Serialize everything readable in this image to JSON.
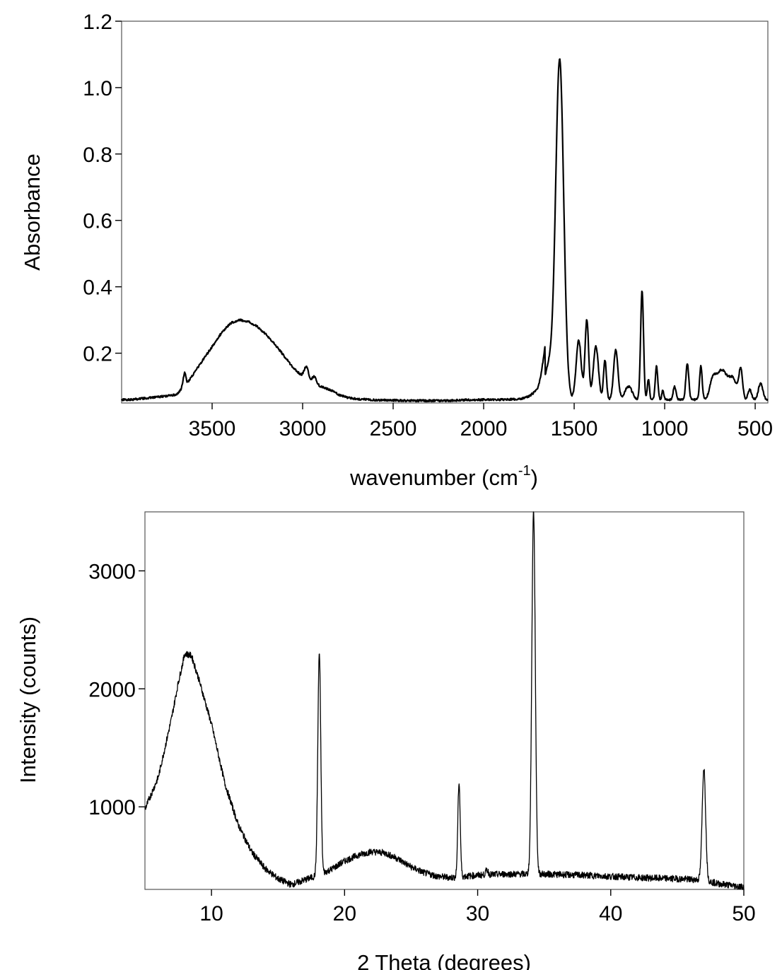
{
  "chart_data": [
    {
      "type": "line",
      "title": "",
      "xlabel": "wavenumber (cm",
      "xlabel_sup": "-1",
      "xlabel_end": ")",
      "ylabel": "Absorbance",
      "xlim": [
        4000,
        430
      ],
      "ylim": [
        0.05,
        1.2
      ],
      "x_reversed": true,
      "x_ticks": [
        3500,
        3000,
        2500,
        2000,
        1500,
        1000,
        500
      ],
      "x_tick_labels": [
        "3500",
        "3000",
        "2500",
        "2000",
        "1500",
        "1000",
        "500"
      ],
      "y_ticks": [
        0.2,
        0.4,
        0.6,
        0.8,
        1.0,
        1.2
      ],
      "y_tick_labels": [
        "0.2",
        "0.4",
        "0.6",
        "0.8",
        "1.0",
        "1.2"
      ],
      "grid": false,
      "series": [
        {
          "baseline": [
            [
              3950,
              0.06
            ],
            [
              3800,
              0.068
            ],
            [
              3700,
              0.075
            ],
            [
              3650,
              0.1
            ],
            [
              3600,
              0.14
            ],
            [
              3550,
              0.18
            ],
            [
              3500,
              0.22
            ],
            [
              3450,
              0.26
            ],
            [
              3400,
              0.29
            ],
            [
              3350,
              0.3
            ],
            [
              3300,
              0.295
            ],
            [
              3250,
              0.28
            ],
            [
              3200,
              0.255
            ],
            [
              3150,
              0.225
            ],
            [
              3100,
              0.19
            ],
            [
              3050,
              0.155
            ],
            [
              3000,
              0.13
            ],
            [
              2950,
              0.115
            ],
            [
              2900,
              0.1
            ],
            [
              2850,
              0.09
            ],
            [
              2800,
              0.075
            ],
            [
              2750,
              0.066
            ],
            [
              2700,
              0.062
            ],
            [
              2600,
              0.059
            ],
            [
              2500,
              0.058
            ],
            [
              2400,
              0.057
            ],
            [
              2200,
              0.057
            ],
            [
              2100,
              0.059
            ],
            [
              2000,
              0.06
            ],
            [
              1900,
              0.06
            ],
            [
              1800,
              0.062
            ],
            [
              1750,
              0.07
            ],
            [
              1700,
              0.09
            ],
            [
              1680,
              0.12
            ],
            [
              1660,
              0.15
            ]
          ],
          "peaks": [
            [
              3655,
              0.025,
              8
            ],
            [
              3650,
              0.02,
              6
            ],
            [
              2980,
              0.035,
              12
            ],
            [
              2935,
              0.02,
              10
            ],
            [
              1580,
              1.02,
              22
            ],
            [
              1640,
              0.1,
              25
            ],
            [
              1475,
              0.18,
              14
            ],
            [
              1430,
              0.24,
              10
            ],
            [
              1380,
              0.16,
              14
            ],
            [
              1330,
              0.12,
              8
            ],
            [
              1270,
              0.15,
              12
            ],
            [
              1200,
              0.04,
              20
            ],
            [
              1125,
              0.33,
              8
            ],
            [
              1090,
              0.06,
              6
            ],
            [
              1045,
              0.1,
              7
            ],
            [
              1010,
              0.03,
              5
            ],
            [
              945,
              0.04,
              8
            ],
            [
              875,
              0.11,
              8
            ],
            [
              800,
              0.1,
              7
            ],
            [
              735,
              0.04,
              15
            ],
            [
              685,
              0.09,
              35
            ],
            [
              620,
              0.05,
              20
            ],
            [
              580,
              0.09,
              10
            ],
            [
              530,
              0.03,
              10
            ],
            [
              470,
              0.05,
              12
            ]
          ],
          "tail_baseline": 0.06,
          "noise_amplitude": 0.003
        }
      ]
    },
    {
      "type": "line",
      "title": "",
      "xlabel": "2 Theta (degrees)",
      "ylabel": "Intensity (counts)",
      "xlim": [
        5,
        50
      ],
      "ylim": [
        300,
        3500
      ],
      "x_ticks": [
        10,
        20,
        30,
        40,
        50
      ],
      "x_tick_labels": [
        "10",
        "20",
        "30",
        "40",
        "50"
      ],
      "y_ticks": [
        1000,
        2000,
        3000
      ],
      "y_tick_labels": [
        "1000",
        "2000",
        "3000"
      ],
      "grid": false,
      "series": [
        {
          "baseline": [
            [
              5,
              980
            ],
            [
              6,
              1250
            ],
            [
              7,
              1750
            ],
            [
              7.5,
              2050
            ],
            [
              8,
              2300
            ],
            [
              8.5,
              2280
            ],
            [
              9,
              2100
            ],
            [
              10,
              1700
            ],
            [
              11,
              1200
            ],
            [
              12,
              850
            ],
            [
              13,
              620
            ],
            [
              14,
              480
            ],
            [
              15,
              390
            ],
            [
              16,
              340
            ],
            [
              17,
              380
            ],
            [
              18,
              420
            ],
            [
              19,
              470
            ],
            [
              20,
              540
            ],
            [
              21,
              590
            ],
            [
              22,
              620
            ],
            [
              23,
              610
            ],
            [
              24,
              560
            ],
            [
              25,
              490
            ],
            [
              26,
              440
            ],
            [
              27,
              410
            ],
            [
              28,
              400
            ],
            [
              30,
              420
            ],
            [
              32,
              430
            ],
            [
              35,
              430
            ],
            [
              38,
              420
            ],
            [
              40,
              410
            ],
            [
              42,
              400
            ],
            [
              45,
              390
            ],
            [
              47,
              380
            ],
            [
              48,
              350
            ],
            [
              50,
              320
            ]
          ],
          "peaks": [
            [
              18.1,
              1880,
              0.11
            ],
            [
              28.6,
              800,
              0.09
            ],
            [
              30.7,
              40,
              0.1
            ],
            [
              34.2,
              3080,
              0.13
            ],
            [
              47.0,
              950,
              0.13
            ]
          ],
          "noise_amplitude": 28
        }
      ]
    }
  ]
}
